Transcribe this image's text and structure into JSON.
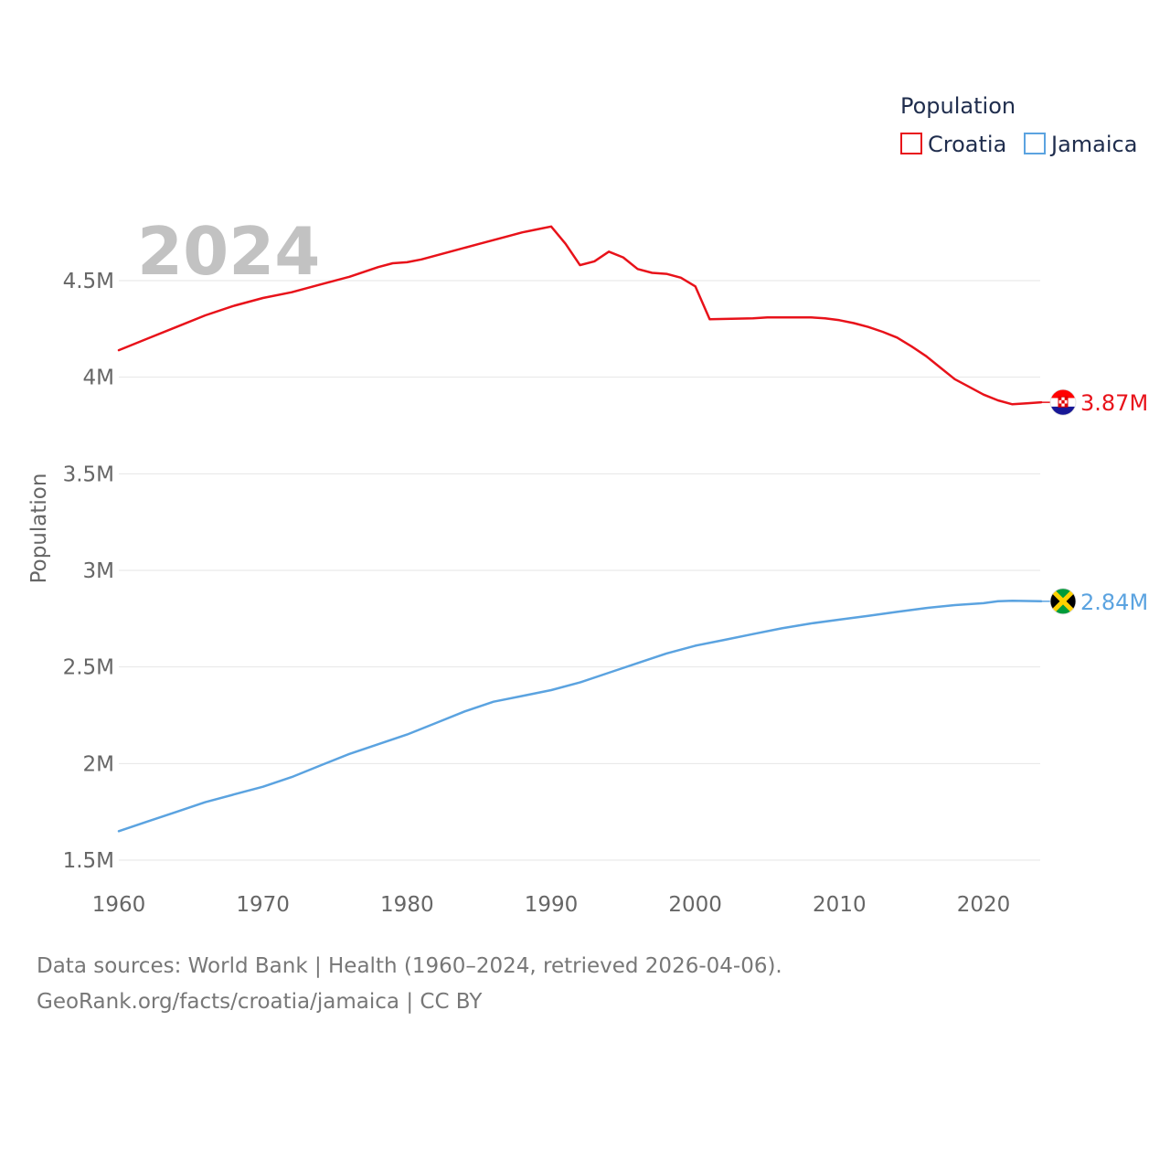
{
  "chart_data": {
    "type": "line",
    "ylabel": "Population",
    "xlabel": "",
    "year_label": "2024",
    "legend": {
      "title": "Population",
      "position": "top-right"
    },
    "x_ticks": [
      "1960",
      "1970",
      "1980",
      "1990",
      "2000",
      "2010",
      "2020"
    ],
    "y_ticks": [
      {
        "value": 1500000,
        "label": "1.5M"
      },
      {
        "value": 2000000,
        "label": "2M"
      },
      {
        "value": 2500000,
        "label": "2.5M"
      },
      {
        "value": 3000000,
        "label": "3M"
      },
      {
        "value": 3500000,
        "label": "3.5M"
      },
      {
        "value": 4000000,
        "label": "4M"
      },
      {
        "value": 4500000,
        "label": "4.5M"
      }
    ],
    "xlim": [
      1960,
      2024
    ],
    "ylim": [
      1500000,
      4850000
    ],
    "grid": true,
    "series": [
      {
        "name": "Croatia",
        "color": "#e8121a",
        "end_label": "3.87M",
        "flag": "croatia-flag",
        "x": [
          1960,
          1962,
          1964,
          1966,
          1968,
          1970,
          1972,
          1974,
          1976,
          1978,
          1979,
          1980,
          1981,
          1983,
          1985,
          1987,
          1988,
          1989,
          1990,
          1991,
          1992,
          1993,
          1994,
          1995,
          1996,
          1997,
          1998,
          1999,
          2000,
          2001,
          2004,
          2005,
          2008,
          2009,
          2010,
          2011,
          2012,
          2013,
          2014,
          2015,
          2016,
          2017,
          2018,
          2019,
          2020,
          2021,
          2022,
          2023,
          2024
        ],
        "values": [
          4140000,
          4200000,
          4260000,
          4320000,
          4370000,
          4410000,
          4440000,
          4480000,
          4520000,
          4570000,
          4590000,
          4595000,
          4610000,
          4650000,
          4690000,
          4730000,
          4750000,
          4765000,
          4780000,
          4690000,
          4580000,
          4600000,
          4650000,
          4620000,
          4560000,
          4540000,
          4535000,
          4515000,
          4470000,
          4300000,
          4305000,
          4310000,
          4310000,
          4305000,
          4295000,
          4280000,
          4260000,
          4235000,
          4205000,
          4160000,
          4110000,
          4050000,
          3990000,
          3950000,
          3910000,
          3880000,
          3860000,
          3865000,
          3870000
        ]
      },
      {
        "name": "Jamaica",
        "color": "#5ba3e0",
        "end_label": "2.84M",
        "flag": "jamaica-flag",
        "x": [
          1960,
          1962,
          1964,
          1966,
          1968,
          1970,
          1972,
          1974,
          1976,
          1978,
          1980,
          1982,
          1984,
          1986,
          1988,
          1990,
          1992,
          1994,
          1996,
          1998,
          2000,
          2002,
          2004,
          2006,
          2008,
          2010,
          2012,
          2014,
          2016,
          2018,
          2020,
          2021,
          2022,
          2024
        ],
        "values": [
          1650000,
          1700000,
          1750000,
          1800000,
          1840000,
          1880000,
          1930000,
          1990000,
          2050000,
          2100000,
          2150000,
          2210000,
          2270000,
          2320000,
          2350000,
          2380000,
          2420000,
          2470000,
          2520000,
          2570000,
          2610000,
          2640000,
          2670000,
          2700000,
          2725000,
          2745000,
          2765000,
          2785000,
          2805000,
          2820000,
          2830000,
          2840000,
          2843000,
          2840000
        ]
      }
    ]
  },
  "footer": {
    "line1": "Data sources: World Bank | Health (1960–2024, retrieved 2026-04-06).",
    "line2": "GeoRank.org/facts/croatia/jamaica | CC BY"
  }
}
